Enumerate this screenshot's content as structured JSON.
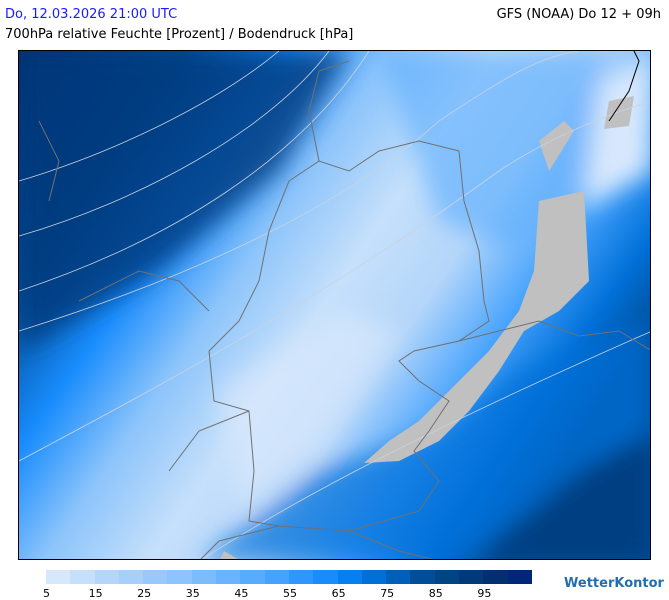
{
  "header": {
    "datetime": "Do, 12.03.2026 21:00 UTC",
    "model": "GFS (NOAA) Do 12 + 09h",
    "title": "700hPa relative Feuchte [Prozent] / Bodendruck [hPa]"
  },
  "legend": {
    "labels": [
      "5",
      "15",
      "25",
      "35",
      "45",
      "55",
      "65",
      "75",
      "85",
      "95"
    ],
    "colors": [
      "#d8e8fc",
      "#c6e0fb",
      "#b4d6fa",
      "#a6cffa",
      "#98c9fa",
      "#8cc4fb",
      "#7dbcfc",
      "#6ab4fd",
      "#58abfd",
      "#45a2fd",
      "#2f96fd",
      "#188cfc",
      "#0480f0",
      "#0070d8",
      "#005fb8",
      "#004e98",
      "#004484",
      "#003a7a",
      "#003070",
      "#002678"
    ]
  },
  "logo": {
    "text": "WetterKontor"
  },
  "colors": {
    "no_data": "#c0c0c0",
    "border": "#707070",
    "isobar": "#c8d4e0"
  }
}
